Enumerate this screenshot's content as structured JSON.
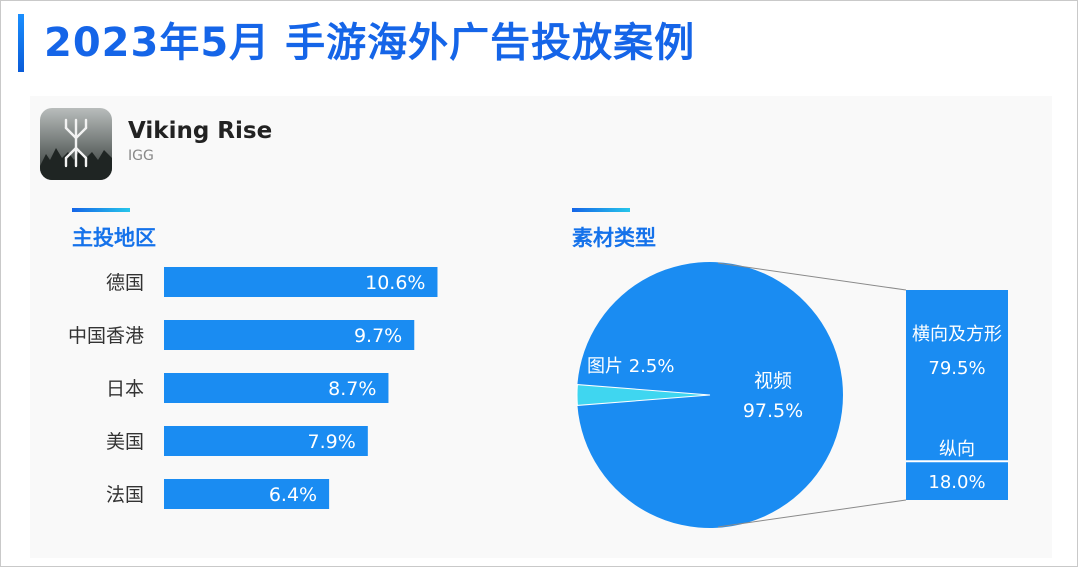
{
  "page": {
    "title": "2023年5月 手游海外广告投放案例"
  },
  "app": {
    "name": "Viking Rise",
    "publisher": "IGG",
    "icon": "viking-rune-icon"
  },
  "colors": {
    "title": "#1565e8",
    "bar": "#1a8cf2",
    "pie_main": "#1a8cf2",
    "pie_small": "#3fd6f0",
    "section_title": "#1572ea"
  },
  "sections": {
    "regions_title": "主投地区",
    "material_title": "素材类型"
  },
  "chart_data": [
    {
      "type": "bar",
      "orientation": "horizontal",
      "title": "主投地区",
      "categories": [
        "德国",
        "中国香港",
        "日本",
        "美国",
        "法国"
      ],
      "values": [
        10.6,
        9.7,
        8.7,
        7.9,
        6.4
      ],
      "value_labels": [
        "10.6%",
        "9.7%",
        "8.7%",
        "7.9%",
        "6.4%"
      ],
      "unit": "%",
      "grid": false
    },
    {
      "type": "pie",
      "title": "素材类型",
      "slices": [
        {
          "label": "视频",
          "value": 97.5,
          "value_label": "97.5%"
        },
        {
          "label": "图片",
          "value": 2.5,
          "value_label": "2.5%"
        }
      ],
      "breakdown": {
        "of": "视频",
        "type": "bar",
        "stacked": true,
        "segments": [
          {
            "label": "横向及方形",
            "value": 79.5,
            "value_label": "79.5%"
          },
          {
            "label": "纵向",
            "value": 18.0,
            "value_label": "18.0%"
          }
        ]
      }
    }
  ]
}
